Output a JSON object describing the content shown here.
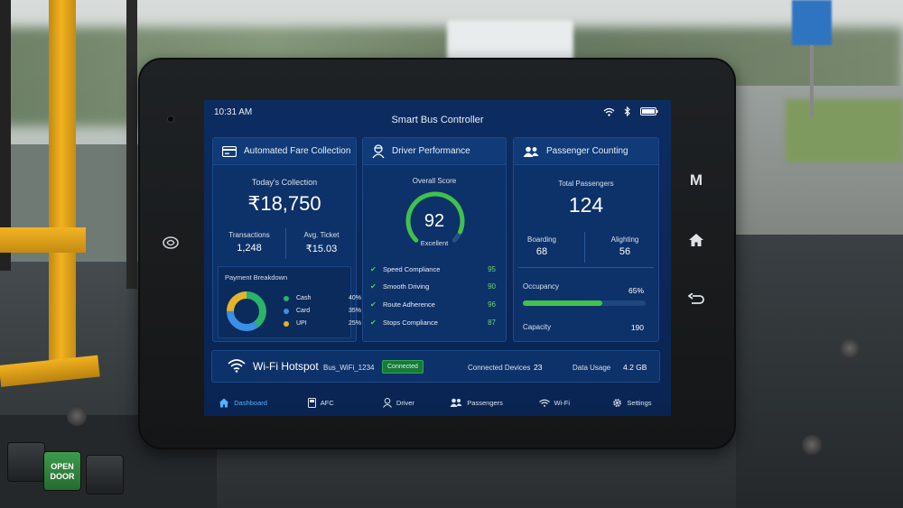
{
  "status": {
    "time": "10:31 AM"
  },
  "app": {
    "title": "Smart Bus Controller"
  },
  "scene": {
    "door_button_label": "OPEN DOOR"
  },
  "hardware_buttons": {
    "menu": "M",
    "home": "⌂",
    "back": "↩"
  },
  "afc": {
    "title": "Automated Fare Collection",
    "today_label": "Today's Collection",
    "today_value": "₹18,750",
    "transactions_label": "Transactions",
    "transactions_value": "1,248",
    "avg_ticket_label": "Avg. Ticket",
    "avg_ticket_value": "₹15.03",
    "breakdown_title": "Payment Breakdown",
    "breakdown": [
      {
        "label": "Cash",
        "pct": "40%",
        "value": 40,
        "color": "#2ab36a"
      },
      {
        "label": "Card",
        "pct": "35%",
        "value": 35,
        "color": "#3b8fe6"
      },
      {
        "label": "UPI",
        "pct": "25%",
        "value": 25,
        "color": "#e3b52c"
      }
    ]
  },
  "driver": {
    "title": "Driver Performance",
    "score_label": "Overall Score",
    "score_value": "92",
    "score": 92,
    "score_rating": "Excellent",
    "metrics": [
      {
        "label": "Speed Compliance",
        "value": "95"
      },
      {
        "label": "Smooth Driving",
        "value": "90"
      },
      {
        "label": "Route Adherence",
        "value": "96"
      },
      {
        "label": "Stops Compliance",
        "value": "87"
      }
    ]
  },
  "passengers": {
    "title": "Passenger Counting",
    "total_label": "Total Passengers",
    "total_value": "124",
    "boarding_label": "Boarding",
    "boarding_value": "68",
    "alighting_label": "Alighting",
    "alighting_value": "56",
    "occupancy_label": "Occupancy",
    "occupancy_value": "65%",
    "occupancy": 0.65,
    "capacity_label": "Capacity",
    "capacity_value": "190"
  },
  "wifi": {
    "title": "Wi-Fi Hotspot",
    "ssid": "Bus_WiFi_1234",
    "status": "Connected",
    "devices_label": "Connected Devices",
    "devices_value": "23",
    "usage_label": "Data Usage",
    "usage_value": "4.2 GB"
  },
  "nav": {
    "dashboard": "Dashboard",
    "afc": "AFC",
    "driver": "Driver",
    "passengers": "Passengers",
    "wifi": "Wi-Fi",
    "settings": "Settings"
  },
  "colors": {
    "accent": "#4fb2ff",
    "success": "#42c24a",
    "screen_bg": "#0c2c61"
  }
}
